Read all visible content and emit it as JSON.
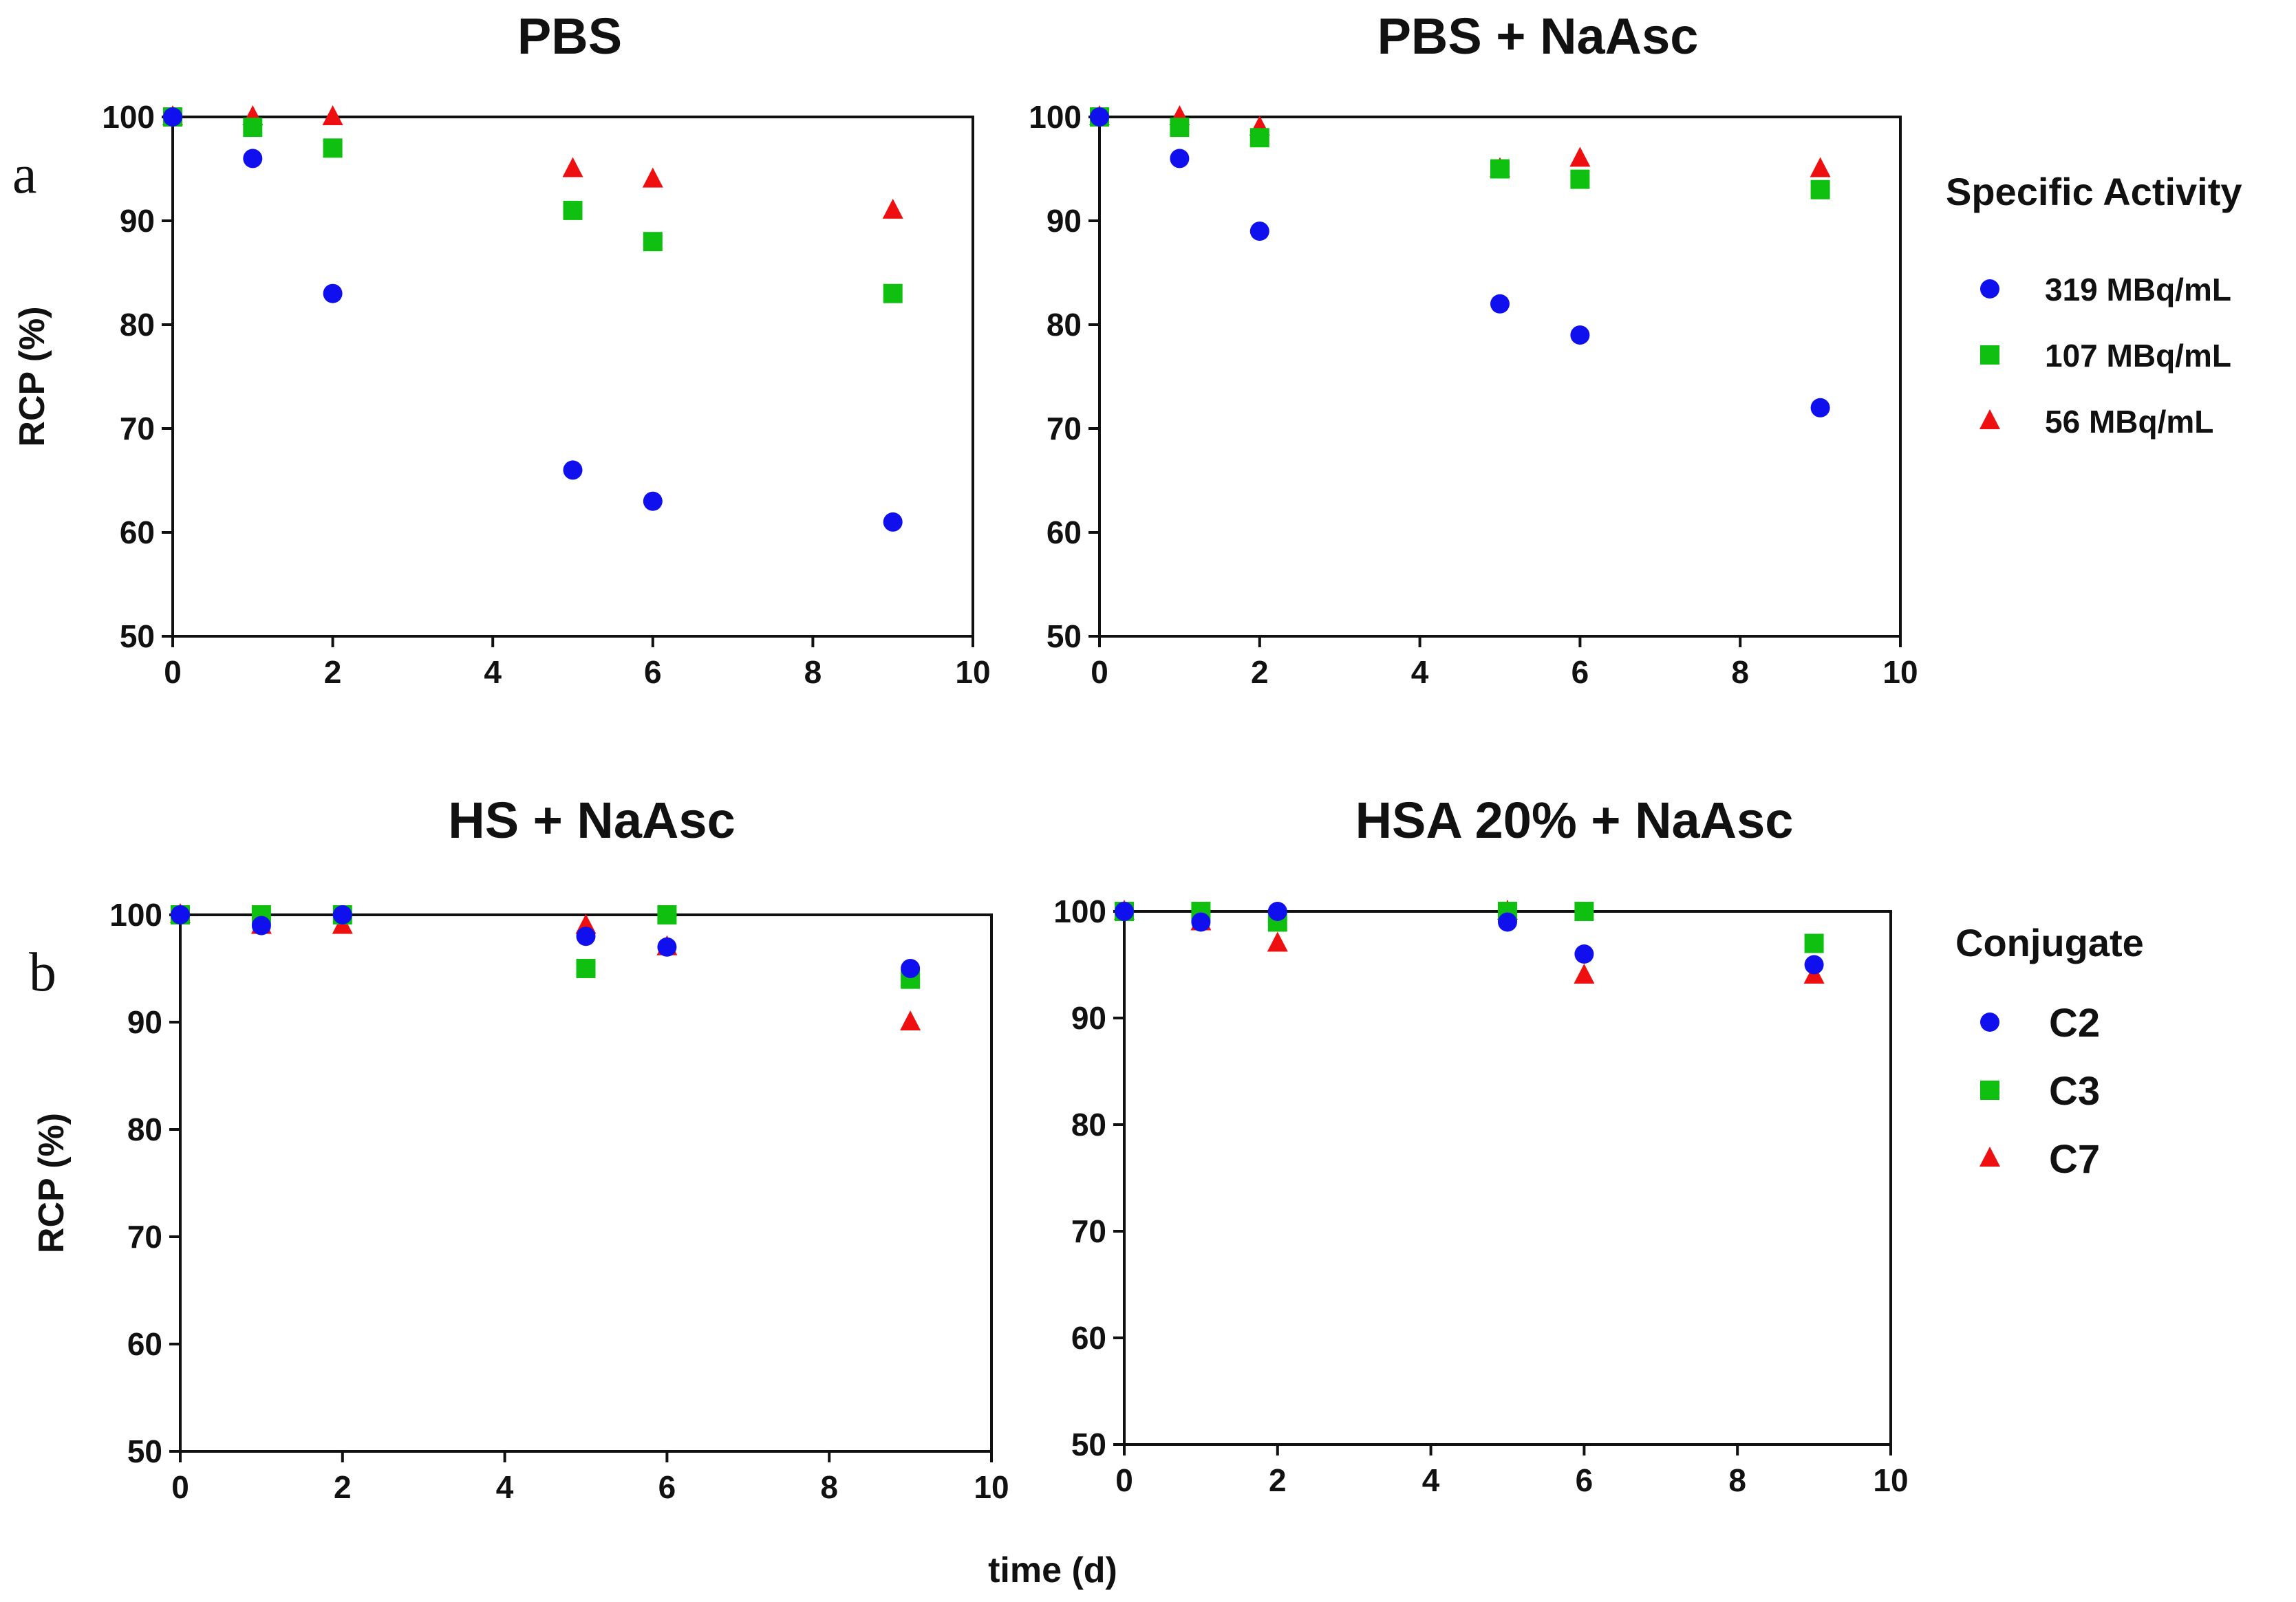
{
  "figure": {
    "panel_labels": [
      "a",
      "b"
    ],
    "shared_xlabel": "time (d)",
    "shared_ylabel": "RCP (%)"
  },
  "legends": [
    {
      "title": "Specific Activity",
      "entries": [
        {
          "label": "319 MBq/mL",
          "marker": "circle",
          "color": "#1010ee"
        },
        {
          "label": "107 MBq/mL",
          "marker": "square",
          "color": "#10c010"
        },
        {
          "label": "56 MBq/mL",
          "marker": "triangle",
          "color": "#ee1010"
        }
      ]
    },
    {
      "title": "Conjugate",
      "entries": [
        {
          "label": "C2",
          "marker": "circle",
          "color": "#1010ee"
        },
        {
          "label": "C3",
          "marker": "square",
          "color": "#10c010"
        },
        {
          "label": "C7",
          "marker": "triangle",
          "color": "#ee1010"
        }
      ]
    }
  ],
  "chart_data": [
    {
      "type": "scatter",
      "title": "PBS",
      "xlabel": "",
      "ylabel": "RCP (%)",
      "xlim": [
        0,
        10
      ],
      "ylim": [
        50,
        100
      ],
      "xticks": [
        "0",
        "2",
        "4",
        "6",
        "8",
        "10"
      ],
      "yticks": [
        "50",
        "60",
        "70",
        "80",
        "90",
        "100"
      ],
      "x": [
        0,
        1,
        2,
        5,
        6,
        9
      ],
      "series": [
        {
          "name": "319 MBq/mL",
          "marker": "circle",
          "color": "#1010ee",
          "values": [
            100,
            96,
            83,
            66,
            63,
            61
          ]
        },
        {
          "name": "107 MBq/mL",
          "marker": "square",
          "color": "#10c010",
          "values": [
            100,
            99,
            97,
            91,
            88,
            83
          ]
        },
        {
          "name": "56 MBq/mL",
          "marker": "triangle",
          "color": "#ee1010",
          "values": [
            100,
            100,
            100,
            95,
            94,
            91
          ]
        }
      ]
    },
    {
      "type": "scatter",
      "title": "PBS + NaAsc",
      "xlabel": "",
      "ylabel": "",
      "xlim": [
        0,
        10
      ],
      "ylim": [
        50,
        100
      ],
      "xticks": [
        "0",
        "2",
        "4",
        "6",
        "8",
        "10"
      ],
      "yticks": [
        "50",
        "60",
        "70",
        "80",
        "90",
        "100"
      ],
      "x": [
        0,
        1,
        2,
        5,
        6,
        9
      ],
      "series": [
        {
          "name": "319 MBq/mL",
          "marker": "circle",
          "color": "#1010ee",
          "values": [
            100,
            96,
            89,
            82,
            79,
            72
          ]
        },
        {
          "name": "107 MBq/mL",
          "marker": "square",
          "color": "#10c010",
          "values": [
            100,
            99,
            98,
            95,
            94,
            93
          ]
        },
        {
          "name": "56 MBq/mL",
          "marker": "triangle",
          "color": "#ee1010",
          "values": [
            100,
            100,
            99,
            95,
            96,
            95
          ]
        }
      ]
    },
    {
      "type": "scatter",
      "title": "HS + NaAsc",
      "xlabel": "",
      "ylabel": "RCP (%)",
      "xlim": [
        0,
        10
      ],
      "ylim": [
        50,
        100
      ],
      "xticks": [
        "0",
        "2",
        "4",
        "6",
        "8",
        "10"
      ],
      "yticks": [
        "50",
        "60",
        "70",
        "80",
        "90",
        "100"
      ],
      "x": [
        0,
        1,
        2,
        5,
        6,
        9
      ],
      "series": [
        {
          "name": "C2",
          "marker": "circle",
          "color": "#1010ee",
          "values": [
            100,
            99,
            100,
            98,
            97,
            95
          ]
        },
        {
          "name": "C3",
          "marker": "square",
          "color": "#10c010",
          "values": [
            100,
            100,
            100,
            95,
            100,
            94
          ]
        },
        {
          "name": "C7",
          "marker": "triangle",
          "color": "#ee1010",
          "values": [
            100,
            99,
            99,
            99,
            97,
            90
          ]
        }
      ]
    },
    {
      "type": "scatter",
      "title": "HSA 20% + NaAsc",
      "xlabel": "",
      "ylabel": "",
      "xlim": [
        0,
        10
      ],
      "ylim": [
        50,
        100
      ],
      "xticks": [
        "0",
        "2",
        "4",
        "6",
        "8",
        "10"
      ],
      "yticks": [
        "50",
        "60",
        "70",
        "80",
        "90",
        "100"
      ],
      "x": [
        0,
        1,
        2,
        5,
        6,
        9
      ],
      "series": [
        {
          "name": "C2",
          "marker": "circle",
          "color": "#1010ee",
          "values": [
            100,
            99,
            100,
            99,
            96,
            95
          ]
        },
        {
          "name": "C3",
          "marker": "square",
          "color": "#10c010",
          "values": [
            100,
            100,
            99,
            100,
            100,
            97
          ]
        },
        {
          "name": "C7",
          "marker": "triangle",
          "color": "#ee1010",
          "values": [
            100,
            99,
            97,
            100,
            94,
            94
          ]
        }
      ]
    }
  ]
}
